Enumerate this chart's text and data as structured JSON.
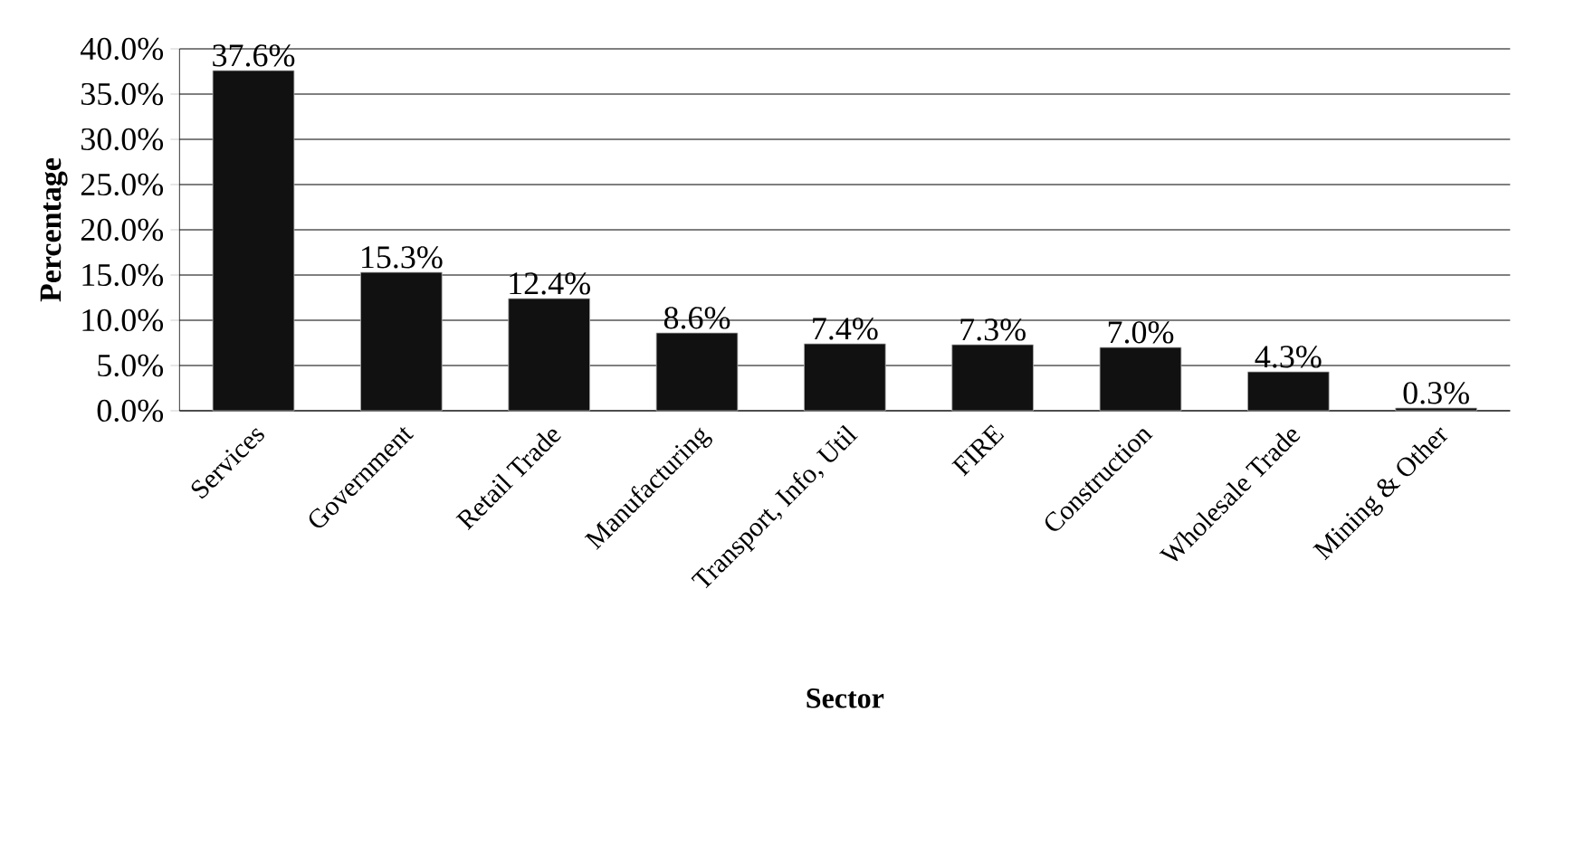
{
  "chart_data": {
    "type": "bar",
    "xlabel": "Sector",
    "ylabel": "Percentage",
    "categories": [
      "Services",
      "Government",
      "Retail Trade",
      "Manufacturing",
      "Transport, Info, Util",
      "FIRE",
      "Construction",
      "Wholesale Trade",
      "Mining & Other"
    ],
    "values": [
      37.6,
      15.3,
      12.4,
      8.6,
      7.4,
      7.3,
      7.0,
      4.3,
      0.3
    ],
    "value_labels": [
      "37.6%",
      "15.3%",
      "12.4%",
      "8.6%",
      "7.4%",
      "7.3%",
      "7.0%",
      "4.3%",
      "0.3%"
    ],
    "color": "#111111",
    "ylim": [
      0,
      40
    ],
    "yticks": [
      {
        "value": 0,
        "label": "0.0%"
      },
      {
        "value": 5,
        "label": "5.0%"
      },
      {
        "value": 10,
        "label": "10.0%"
      },
      {
        "value": 15,
        "label": "15.0%"
      },
      {
        "value": 20,
        "label": "20.0%"
      },
      {
        "value": 25,
        "label": "25.0%"
      },
      {
        "value": 30,
        "label": "30.0%"
      },
      {
        "value": 35,
        "label": "35.0%"
      },
      {
        "value": 40,
        "label": "40.0%"
      }
    ],
    "grid": "y"
  }
}
